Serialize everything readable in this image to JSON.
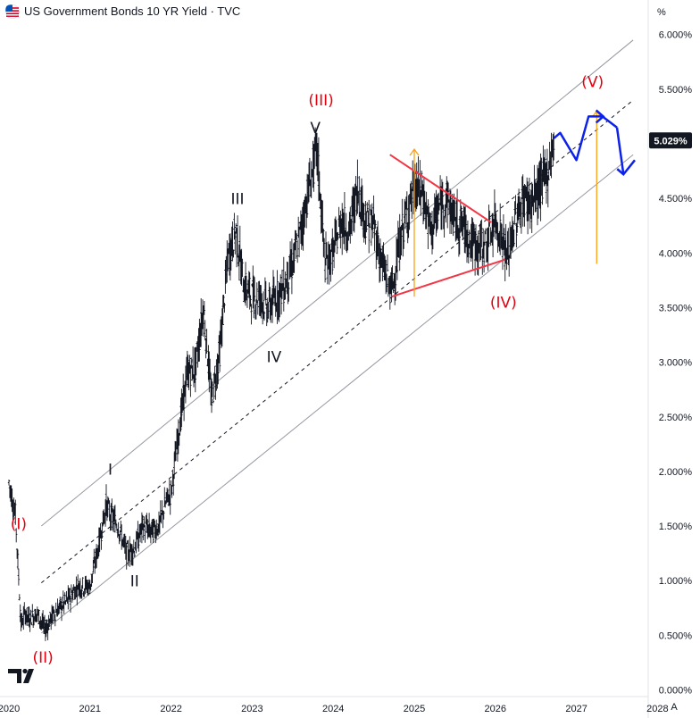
{
  "header": {
    "title": "US Government Bonds 10 YR Yield · TVC",
    "flag_icon": "us-flag-icon",
    "logo_icon": "tradingview-logo-icon"
  },
  "axis": {
    "unit_label": "%",
    "auto_label": "A",
    "y_ticks": [
      "6.000%",
      "5.500%",
      "5.000%",
      "4.500%",
      "4.000%",
      "3.500%",
      "3.000%",
      "2.500%",
      "2.000%",
      "1.500%",
      "1.000%",
      "0.500%",
      "0.000%"
    ],
    "x_ticks": [
      "2020",
      "2021",
      "2022",
      "2023",
      "2024",
      "2025",
      "2026",
      "2027",
      "2028"
    ],
    "last_price_label": "5.029%"
  },
  "colors": {
    "price_bars": "#131722",
    "channel_lines": "#9598a1",
    "channel_midline": "#131722",
    "triangle": "#f23645",
    "target_arrows": "#f7a21b",
    "projection": "#0c22e8",
    "last_price_badge": "#131722",
    "wave_red": "#e4000f"
  },
  "chart_data": {
    "type": "line",
    "title": "US Government Bonds 10 YR Yield · TVC",
    "xlabel": "",
    "ylabel": "",
    "ylim": [
      0,
      6.3
    ],
    "xlim": [
      2020.0,
      2028.0
    ],
    "grid": false,
    "series": [
      {
        "x": [
          2020.0,
          2020.08,
          2020.15,
          2020.2,
          2020.25,
          2020.35,
          2020.45,
          2020.55,
          2020.7,
          2020.85,
          2021.0,
          2021.1,
          2021.2,
          2021.25,
          2021.35,
          2021.45,
          2021.55,
          2021.65,
          2021.75,
          2021.85,
          2021.95,
          2022.0,
          2022.1,
          2022.2,
          2022.3,
          2022.4,
          2022.5,
          2022.6,
          2022.7,
          2022.8,
          2022.9,
          2023.0,
          2023.1,
          2023.2,
          2023.3,
          2023.4,
          2023.5,
          2023.6,
          2023.7,
          2023.8,
          2023.9,
          2024.0,
          2024.1,
          2024.2,
          2024.3,
          2024.4,
          2024.5,
          2024.6,
          2024.72,
          2024.85,
          2025.0,
          2025.1,
          2025.2,
          2025.3,
          2025.4,
          2025.5,
          2025.6,
          2025.7,
          2025.8,
          2025.9,
          2026.0,
          2026.1,
          2026.15,
          2026.25,
          2026.35,
          2026.45,
          2026.55,
          2026.65,
          2026.72
        ],
        "values": [
          1.9,
          1.6,
          0.6,
          0.7,
          0.65,
          0.7,
          0.55,
          0.7,
          0.8,
          0.95,
          0.95,
          1.3,
          1.7,
          1.6,
          1.5,
          1.25,
          1.3,
          1.5,
          1.45,
          1.5,
          1.75,
          1.8,
          2.4,
          2.9,
          2.95,
          3.5,
          2.65,
          3.1,
          3.95,
          4.2,
          3.7,
          3.6,
          3.6,
          3.5,
          3.6,
          3.7,
          3.9,
          4.2,
          4.6,
          4.95,
          3.9,
          4.0,
          4.3,
          4.2,
          4.6,
          4.3,
          4.25,
          3.9,
          3.65,
          4.2,
          4.6,
          4.55,
          4.2,
          4.4,
          4.5,
          4.3,
          4.25,
          4.1,
          4.05,
          4.1,
          4.3,
          4.1,
          3.95,
          4.3,
          4.5,
          4.45,
          4.6,
          4.75,
          5.03
        ]
      }
    ],
    "channel": {
      "lower": {
        "x": [
          2020.4,
          2027.7
        ],
        "values": [
          0.52,
          4.9
        ]
      },
      "mid": {
        "x": [
          2020.4,
          2027.7
        ],
        "values": [
          0.98,
          5.4
        ]
      },
      "upper": {
        "x": [
          2020.4,
          2027.7
        ],
        "values": [
          1.5,
          5.95
        ]
      }
    },
    "triangle": {
      "upper": {
        "x": [
          2024.7,
          2025.95
        ],
        "values": [
          4.9,
          4.28
        ]
      },
      "lower": {
        "x": [
          2024.72,
          2026.12
        ],
        "values": [
          3.6,
          3.94
        ]
      }
    },
    "target_arrows": [
      {
        "x": 2025.0,
        "from": 3.6,
        "to": 4.95
      },
      {
        "x": 2027.25,
        "from": 3.9,
        "to": 5.3
      }
    ],
    "projection": {
      "x": [
        2026.72,
        2026.8,
        2027.0,
        2027.15,
        2027.32,
        2027.5,
        2027.58,
        2027.72
      ],
      "values": [
        5.05,
        5.1,
        4.85,
        5.25,
        5.25,
        5.15,
        4.72,
        4.85
      ]
    },
    "annotations": [
      {
        "text": "(I)",
        "x": 2020.12,
        "y": 1.47,
        "color": "red"
      },
      {
        "text": "(II)",
        "x": 2020.42,
        "y": 0.25,
        "color": "red"
      },
      {
        "text": "I",
        "x": 2021.25,
        "y": 1.97,
        "color": "black"
      },
      {
        "text": "II",
        "x": 2021.55,
        "y": 0.95,
        "color": "black"
      },
      {
        "text": "III",
        "x": 2022.82,
        "y": 4.45,
        "color": "black"
      },
      {
        "text": "IV",
        "x": 2023.27,
        "y": 3.0,
        "color": "black"
      },
      {
        "text": "V",
        "x": 2023.78,
        "y": 5.1,
        "color": "black"
      },
      {
        "text": "(III)",
        "x": 2023.85,
        "y": 5.35,
        "color": "red"
      },
      {
        "text": "(IV)",
        "x": 2026.1,
        "y": 3.5,
        "color": "red"
      },
      {
        "text": "(V)",
        "x": 2027.2,
        "y": 5.52,
        "color": "red"
      }
    ]
  }
}
